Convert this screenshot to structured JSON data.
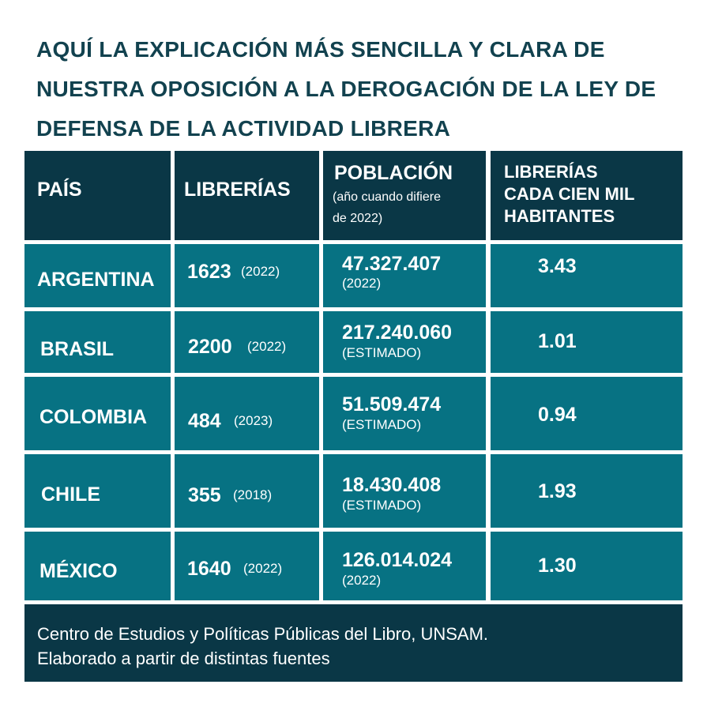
{
  "title": "AQUÍ LA EXPLICACIÓN MÁS SENCILLA Y CLARA DE NUESTRA OPOSICIÓN A LA DEROGACIÓN DE LA LEY DE DEFENSA DE LA ACTIVIDAD LIBRERA",
  "headers": {
    "pais": "PAÍS",
    "librerias": "LIBRERÍAS",
    "poblacion": "POBLACIÓN",
    "poblacion_note_1": "(año cuando difiere",
    "poblacion_note_2": "de 2022)",
    "ratio_1": "LIBRERÍAS",
    "ratio_2": "CADA CIEN MIL",
    "ratio_3": "HABITANTES"
  },
  "rows": [
    {
      "pais": "ARGENTINA",
      "librerias": "1623",
      "librerias_year": "(2022)",
      "poblacion": "47.327.407",
      "poblacion_note": "(2022)",
      "ratio": "3.43"
    },
    {
      "pais": "BRASIL",
      "librerias": "2200",
      "librerias_year": "(2022)",
      "poblacion": "217.240.060",
      "poblacion_note": "(ESTIMADO)",
      "ratio": "1.01"
    },
    {
      "pais": "COLOMBIA",
      "librerias": "484",
      "librerias_year": "(2023)",
      "poblacion": "51.509.474",
      "poblacion_note": "(ESTIMADO)",
      "ratio": "0.94"
    },
    {
      "pais": "CHILE",
      "librerias": "355",
      "librerias_year": "(2018)",
      "poblacion": "18.430.408",
      "poblacion_note": "(ESTIMADO)",
      "ratio": "1.93"
    },
    {
      "pais": "MÉXICO",
      "librerias": "1640",
      "librerias_year": "(2022)",
      "poblacion": "126.014.024",
      "poblacion_note": "(2022)",
      "ratio": "1.30"
    }
  ],
  "footer": {
    "line1": "Centro de Estudios y Políticas Públicas del Libro, UNSAM.",
    "line2": "Elaborado a partir de distintas fuentes"
  },
  "colors": {
    "header_bg": "#0a3746",
    "row_bg": "#077283",
    "title_text": "#12424f"
  }
}
